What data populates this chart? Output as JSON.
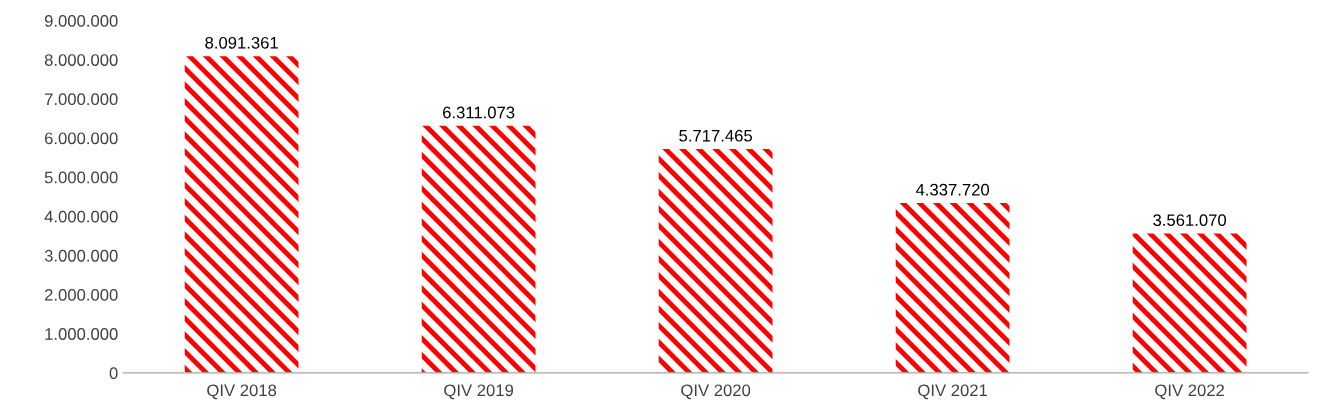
{
  "chart_data": {
    "type": "bar",
    "categories": [
      "QIV 2018",
      "QIV 2019",
      "QIV 2020",
      "QIV 2021",
      "QIV 2022"
    ],
    "values": [
      8091361,
      6311073,
      5717465,
      4337720,
      3561070
    ],
    "value_labels": [
      "8.091.361",
      "6.311.073",
      "5.717.465",
      "4.337.720",
      "3.561.070"
    ],
    "color": "#ff0000",
    "ylim": [
      0,
      9000000
    ],
    "yticks": [
      {
        "value": 0,
        "label": "0"
      },
      {
        "value": 1000000,
        "label": "1.000.000"
      },
      {
        "value": 2000000,
        "label": "2.000.000"
      },
      {
        "value": 3000000,
        "label": "3.000.000"
      },
      {
        "value": 4000000,
        "label": "4.000.000"
      },
      {
        "value": 5000000,
        "label": "5.000.000"
      },
      {
        "value": 6000000,
        "label": "6.000.000"
      },
      {
        "value": 7000000,
        "label": "7.000.000"
      },
      {
        "value": 8000000,
        "label": "8.000.000"
      },
      {
        "value": 9000000,
        "label": "9.000.000"
      }
    ],
    "grid": false,
    "legend": false
  }
}
